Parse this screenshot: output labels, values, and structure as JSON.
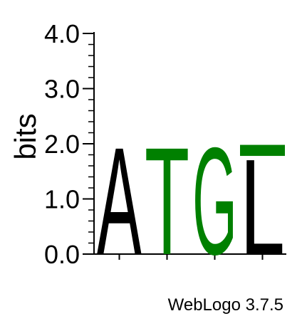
{
  "chart_data": {
    "type": "sequence-logo",
    "ylabel": "bits",
    "ylim": [
      0,
      4.0
    ],
    "yticks": [
      {
        "value": 0.0,
        "label": "0.0"
      },
      {
        "value": 1.0,
        "label": "1.0"
      },
      {
        "value": 2.0,
        "label": "2.0"
      },
      {
        "value": 3.0,
        "label": "3.0"
      },
      {
        "value": 4.0,
        "label": "4.0"
      }
    ],
    "positions": [
      {
        "stack": [
          {
            "letter": "A",
            "height": 2.0,
            "color": "#000000"
          }
        ]
      },
      {
        "stack": [
          {
            "letter": "T",
            "height": 2.0,
            "color": "#008000"
          }
        ]
      },
      {
        "stack": [
          {
            "letter": "G",
            "height": 2.0,
            "color": "#008000"
          }
        ]
      },
      {
        "stack": [
          {
            "letter": "L",
            "height": 1.78,
            "color": "#000000"
          },
          {
            "letter": "",
            "height": 0.2,
            "color": "#008000"
          }
        ]
      }
    ],
    "credit": "WebLogo 3.7.5"
  }
}
